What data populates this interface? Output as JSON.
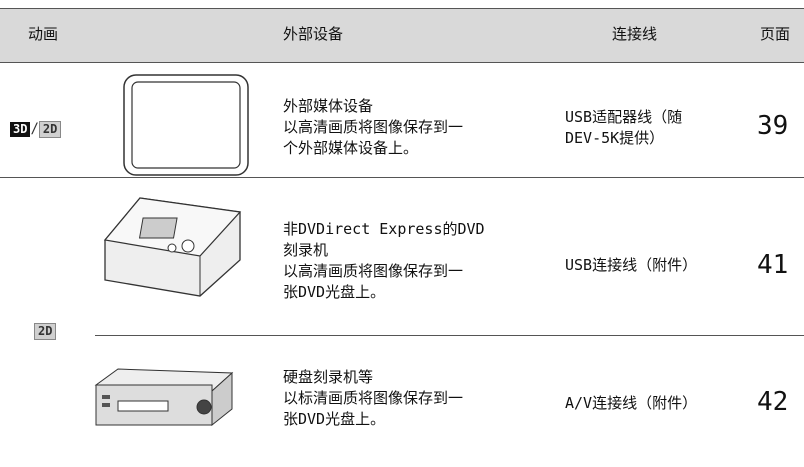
{
  "table": {
    "header": [
      "动画",
      "外部设备",
      "连接线",
      "页面"
    ],
    "rows": [
      {
        "badges": [
          "3D",
          "/",
          "2D"
        ],
        "device_lines": [
          "外部媒体设备",
          "以高清画质将图像保存到一",
          "个外部媒体设备上。"
        ],
        "cable_lines": [
          "USB适配器线（随",
          "DEV-5K提供）"
        ],
        "page": "39"
      },
      {
        "badges": [
          "2D"
        ],
        "device_lines": [
          "非DVDirect Express的DVD",
          "刻录机",
          "以高清画质将图像保存到一",
          "张DVD光盘上。"
        ],
        "cable_lines": [
          "USB连接线（附件）"
        ],
        "page": "41"
      },
      {
        "device_lines": [
          "硬盘刻录机等",
          "以标清画质将图像保存到一",
          "张DVD光盘上。"
        ],
        "cable_lines": [
          "A/V连接线（附件）"
        ],
        "page": "42"
      }
    ]
  }
}
